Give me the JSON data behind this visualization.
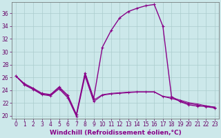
{
  "xlabel": "Windchill (Refroidissement éolien,°C)",
  "background_color": "#cce8ea",
  "grid_color": "#aacccc",
  "line_color": "#880088",
  "x_ticks": [
    0,
    1,
    2,
    3,
    4,
    5,
    6,
    7,
    8,
    9,
    10,
    11,
    12,
    13,
    14,
    15,
    16,
    17,
    18,
    19,
    20,
    21,
    22,
    23
  ],
  "y_ticks": [
    20,
    22,
    24,
    26,
    28,
    30,
    32,
    34,
    36
  ],
  "ylim": [
    19.5,
    37.8
  ],
  "xlim": [
    -0.5,
    23.5
  ],
  "curve1_x": [
    0,
    1,
    2,
    3,
    4,
    5,
    6,
    7,
    8,
    9,
    10,
    11,
    12,
    13,
    14,
    15,
    16,
    17,
    18,
    19,
    20,
    21,
    22,
    23
  ],
  "curve1_y": [
    26.2,
    25.0,
    24.3,
    23.5,
    23.3,
    24.5,
    23.2,
    20.2,
    26.7,
    22.7,
    30.7,
    33.3,
    35.3,
    36.3,
    36.8,
    37.2,
    37.4,
    34.0,
    23.0,
    22.2,
    21.7,
    21.5,
    21.5,
    21.3
  ],
  "curve2_x": [
    0,
    1,
    2,
    3,
    4,
    5,
    6,
    7,
    8,
    9,
    10,
    11,
    12,
    13,
    14,
    15,
    16,
    17,
    18,
    19,
    20,
    21,
    22,
    23
  ],
  "curve2_y": [
    26.2,
    24.8,
    24.1,
    23.3,
    23.1,
    24.2,
    22.8,
    19.9,
    26.2,
    22.2,
    23.2,
    23.4,
    23.5,
    23.6,
    23.7,
    23.7,
    23.7,
    23.0,
    22.7,
    22.3,
    21.9,
    21.7,
    21.4,
    21.2
  ],
  "curve3_x": [
    0,
    1,
    2,
    3,
    4,
    5,
    6,
    7,
    8,
    9,
    10,
    11,
    12,
    13,
    14,
    15,
    16,
    17,
    18,
    19,
    20,
    21,
    22,
    23
  ],
  "curve3_y": [
    26.2,
    24.85,
    24.2,
    23.4,
    23.2,
    24.35,
    23.0,
    20.05,
    26.45,
    22.45,
    23.3,
    23.5,
    23.6,
    23.7,
    23.75,
    23.75,
    23.75,
    23.05,
    22.85,
    22.45,
    22.05,
    21.85,
    21.55,
    21.35
  ],
  "tick_fontsize": 5.5,
  "xlabel_fontsize": 6.5,
  "linewidth": 1.0,
  "marker": "+",
  "markersize": 3.5,
  "markeredgewidth": 0.8
}
